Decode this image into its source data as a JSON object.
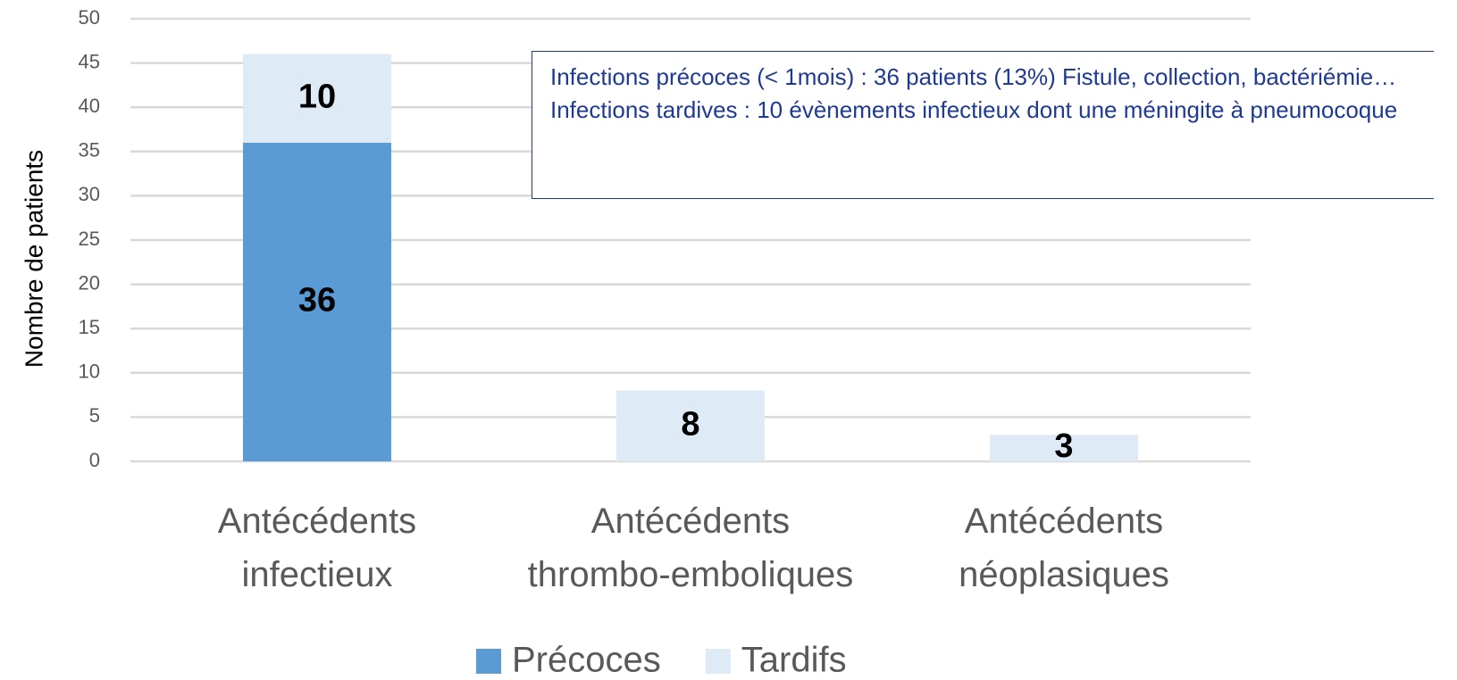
{
  "chart_data": {
    "type": "stacked_bar",
    "y_label": "Nombre de patients",
    "categories": [
      "Antécédents infectieux",
      "Antécédents thrombo-emboliques",
      "Antécédents néoplasiques"
    ],
    "series": [
      {
        "name": "Précoces",
        "color": "#5b9bd5",
        "values": [
          36,
          0,
          0
        ]
      },
      {
        "name": "Tardifs",
        "color": "#deebf7",
        "values": [
          10,
          8,
          3
        ]
      }
    ],
    "ylim": [
      0,
      50
    ],
    "yticks": [
      0,
      5,
      10,
      15,
      20,
      25,
      30,
      35,
      40,
      45,
      50
    ],
    "grid": true,
    "legend": "bottom",
    "annotation": [
      "Infections précoces (< 1mois) : 36 patients (13%) Fistule, collection, bactériémie…",
      "Infections tardives : 10 évènements infectieux dont une méningite à pneumocoque"
    ]
  }
}
